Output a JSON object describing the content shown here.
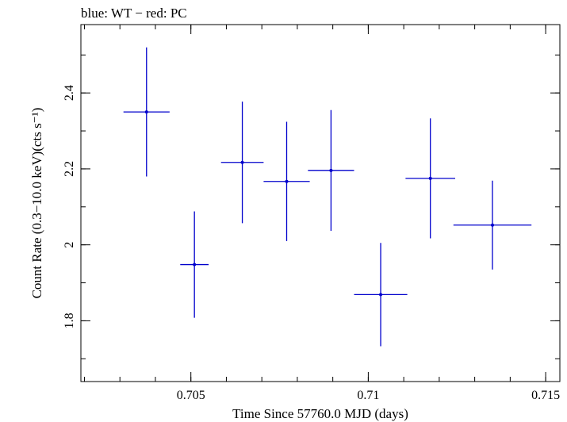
{
  "chart_data": {
    "type": "scatter",
    "title": "blue: WT − red: PC",
    "xlabel": "Time Since 57760.0 MJD (days)",
    "ylabel": "Count Rate (0.3−10.0 keV)(cts s⁻¹)",
    "xlim": [
      0.7019,
      0.7154
    ],
    "ylim": [
      1.64,
      2.58
    ],
    "xticks": [
      {
        "value": 0.705,
        "label": "0.705"
      },
      {
        "value": 0.71,
        "label": "0.71"
      },
      {
        "value": 0.715,
        "label": "0.715"
      }
    ],
    "yticks": [
      {
        "value": 1.8,
        "label": "1.8"
      },
      {
        "value": 2.0,
        "label": "2"
      },
      {
        "value": 2.2,
        "label": "2.2"
      },
      {
        "value": 2.4,
        "label": "2.4"
      }
    ],
    "x_minor_step": 0.001,
    "y_minor_step": 0.1,
    "grid": false,
    "series": [
      {
        "color": "#0000cc",
        "points": [
          {
            "x": 0.70375,
            "xerr": 0.00065,
            "y": 2.35,
            "yerr": 0.17
          },
          {
            "x": 0.7051,
            "xerr": 0.0004,
            "y": 1.948,
            "yerr": 0.14
          },
          {
            "x": 0.70645,
            "xerr": 0.0006,
            "y": 2.217,
            "yerr": 0.16
          },
          {
            "x": 0.7077,
            "xerr": 0.00065,
            "y": 2.167,
            "yerr": 0.157
          },
          {
            "x": 0.70895,
            "xerr": 0.00065,
            "y": 2.196,
            "yerr": 0.159
          },
          {
            "x": 0.71035,
            "xerr": 0.00075,
            "y": 1.869,
            "yerr": 0.136
          },
          {
            "x": 0.71175,
            "xerr": 0.0007,
            "y": 2.175,
            "yerr": 0.158
          },
          {
            "x": 0.7135,
            "xerr": 0.0011,
            "y": 2.052,
            "yerr": 0.117
          }
        ]
      }
    ]
  }
}
